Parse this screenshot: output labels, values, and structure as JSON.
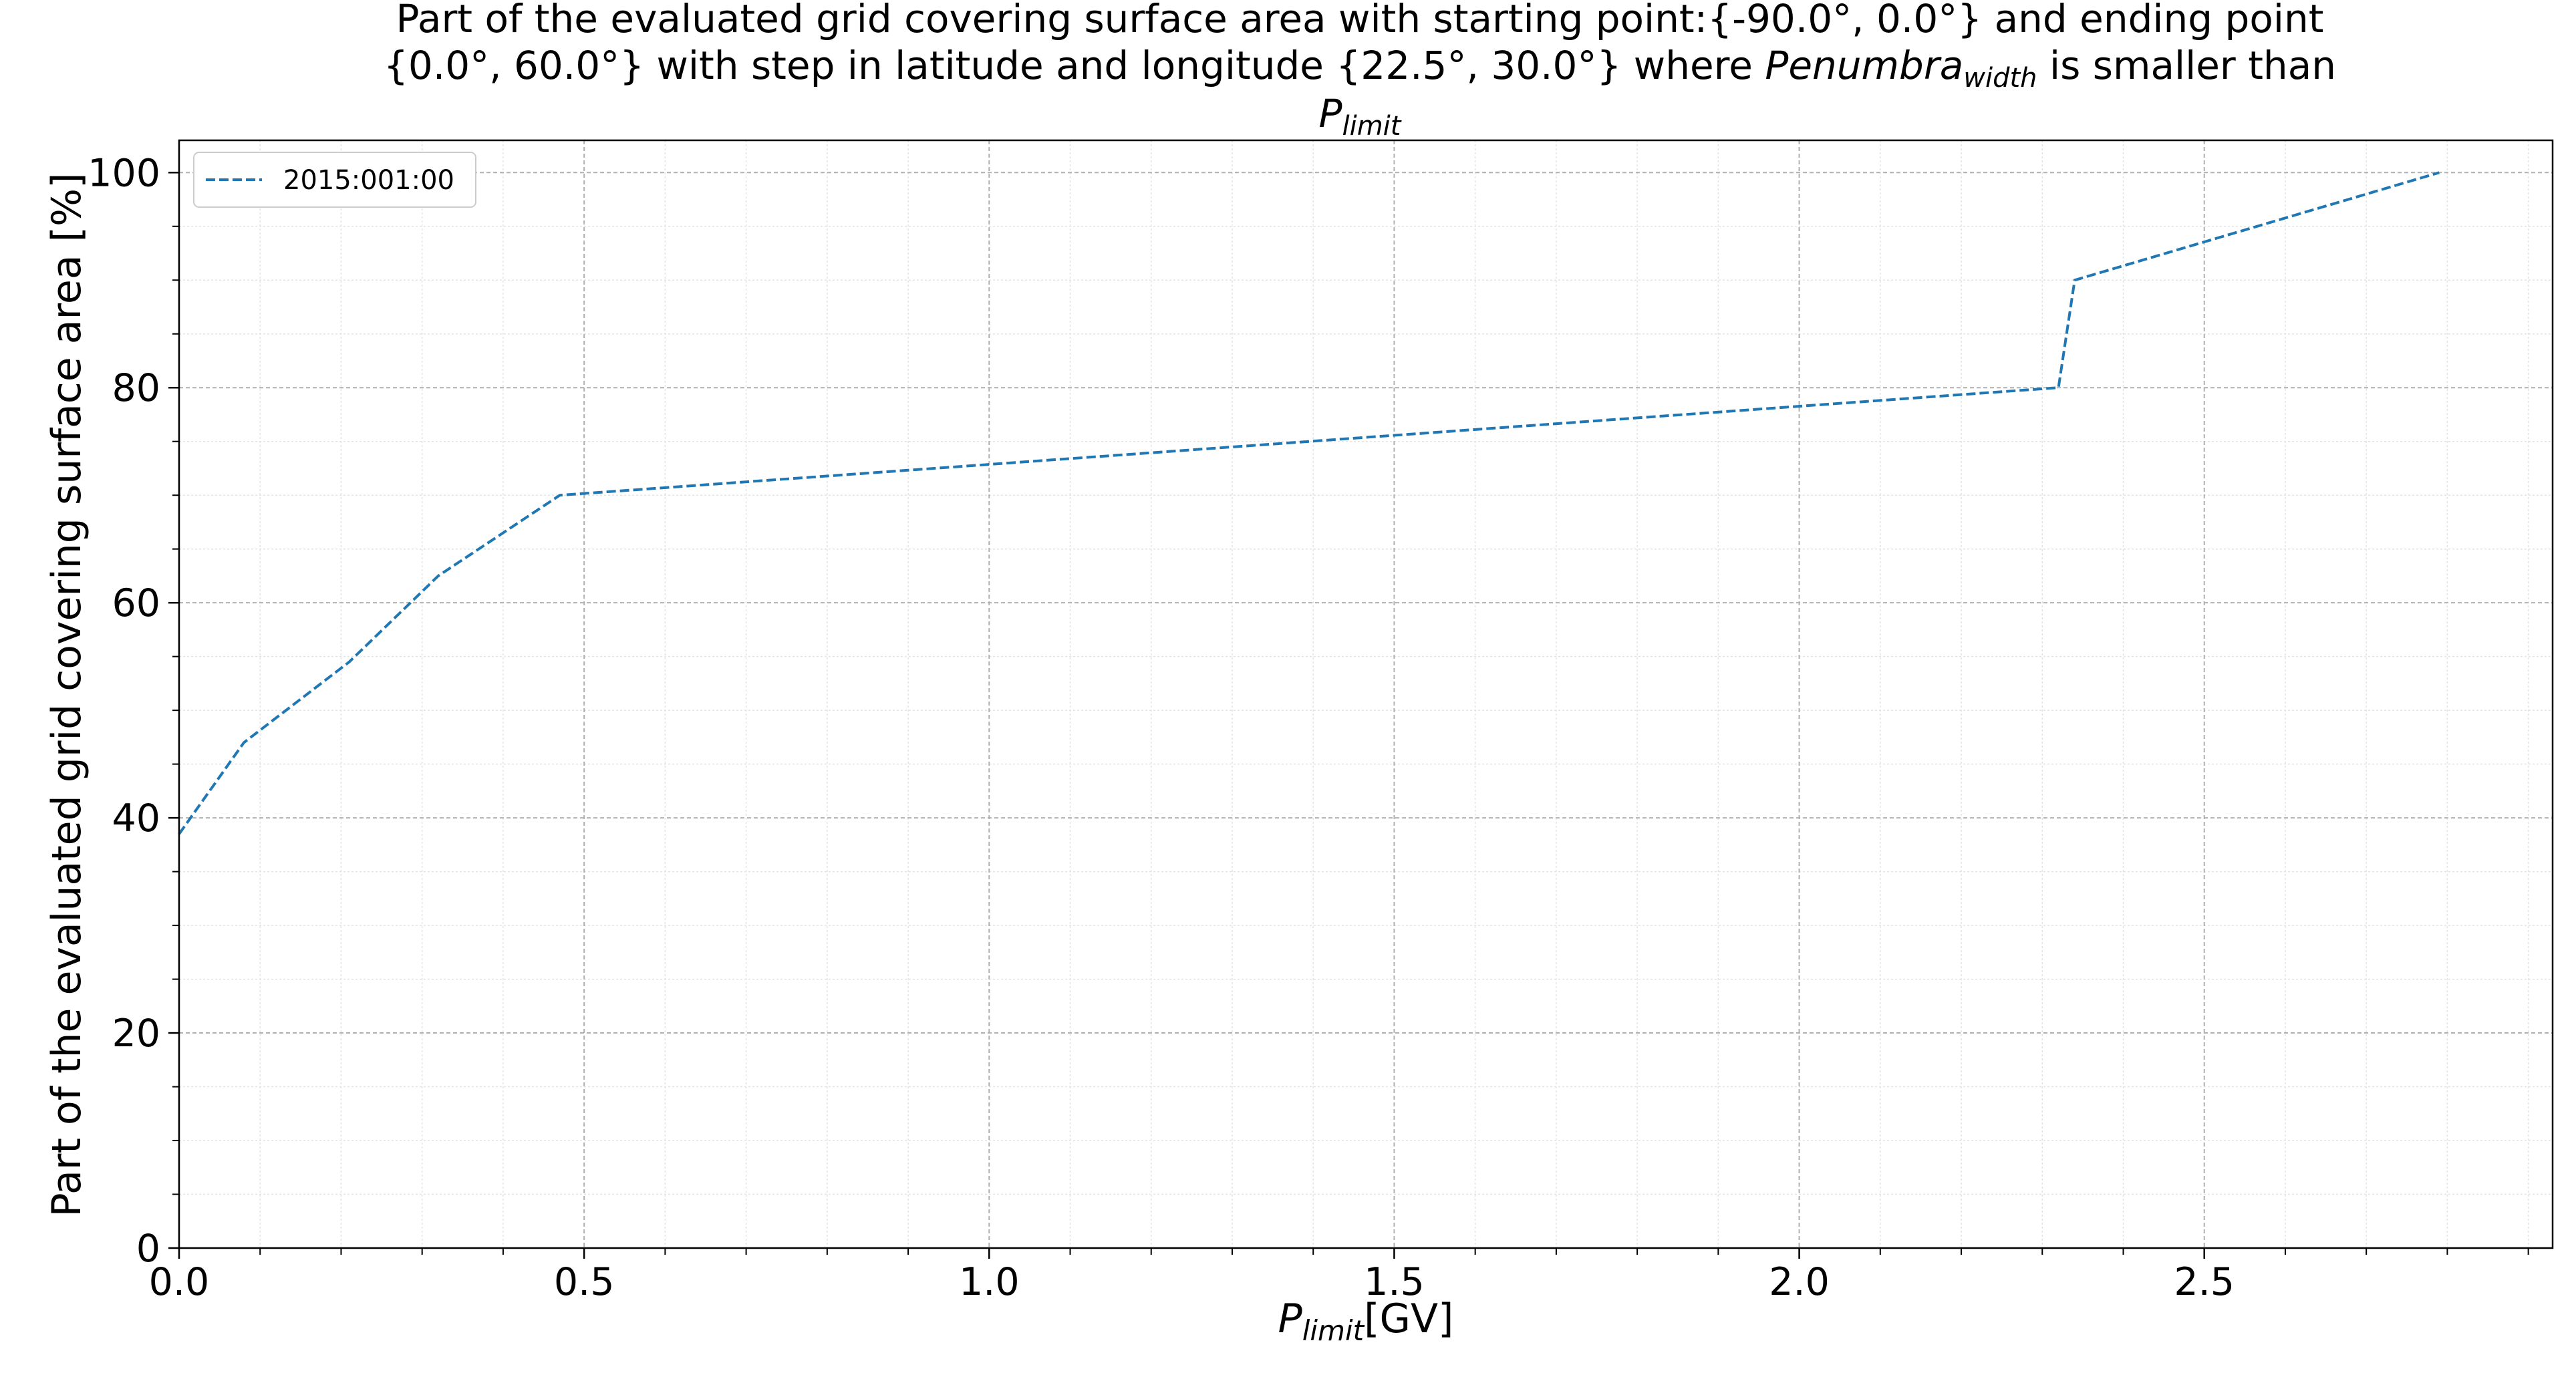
{
  "chart_data": {
    "type": "line",
    "title": {
      "line1": "Part of the evaluated grid covering surface area with starting point:{-90.0°, 0.0°} and ending point",
      "line2_a": "{0.0°, 60.0°} with step in latitude and longitude {22.5°, 30.0°} where ",
      "line2_base": "Penumbra",
      "line2_sub": "width",
      "line2_b": " is smaller than",
      "line3_base": "P",
      "line3_sub": "limit"
    },
    "xlabel": {
      "base": "P",
      "sub": "limit",
      "unit": "[GV]"
    },
    "ylabel": "Part of the evaluated grid covering surface area  [%]",
    "xlim": [
      0,
      2.93
    ],
    "ylim": [
      0,
      103
    ],
    "xticks": [
      0.0,
      0.5,
      1.0,
      1.5,
      2.0,
      2.5
    ],
    "xtick_labels": [
      "0.0",
      "0.5",
      "1.0",
      "1.5",
      "2.0",
      "2.5"
    ],
    "yticks": [
      0,
      20,
      40,
      60,
      80,
      100
    ],
    "ytick_labels": [
      "0",
      "20",
      "40",
      "60",
      "80",
      "100"
    ],
    "grid": true,
    "legend_position": "top-left",
    "series": [
      {
        "name": "2015:001:00",
        "color": "#1f77b4",
        "style": "dashed",
        "x": [
          0.0,
          0.08,
          0.21,
          0.32,
          0.47,
          2.32,
          2.34,
          2.79
        ],
        "y": [
          38.5,
          47.0,
          54.5,
          62.5,
          70.0,
          80.0,
          90.0,
          100.0
        ]
      }
    ]
  }
}
